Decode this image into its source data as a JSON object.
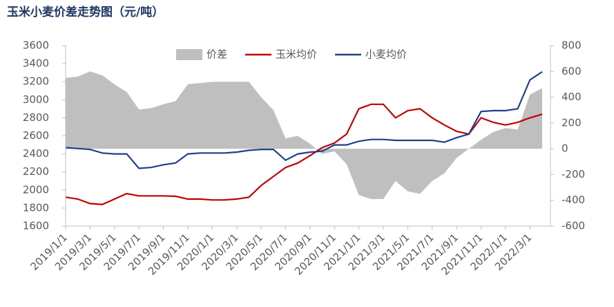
{
  "chart_data": {
    "type": "line",
    "title": "玉米小麦价差走势图（元/吨）",
    "categories": [
      "2019/1/1",
      null,
      "2019/3/1",
      null,
      "2019/5/1",
      null,
      "2019/7/1",
      null,
      "2019/9/1",
      null,
      "2019/11/1",
      null,
      "2020/1/1",
      null,
      "2020/3/1",
      null,
      "2020/5/1",
      null,
      "2020/7/1",
      null,
      "2020/9/1",
      null,
      "2020/11/1",
      null,
      "2021/1/1",
      null,
      "2021/3/1",
      null,
      "2021/5/1",
      null,
      "2021/7/1",
      null,
      "2021/9/1",
      null,
      "2021/11/1",
      null,
      "2022/1/1",
      null,
      "2022/3/1",
      null
    ],
    "series": [
      {
        "name": "价差",
        "kind": "area",
        "axis": "y2",
        "color": "#bfbfbf",
        "values": [
          550,
          560,
          600,
          570,
          500,
          440,
          305,
          315,
          345,
          370,
          500,
          510,
          520,
          520,
          520,
          520,
          400,
          300,
          80,
          100,
          40,
          -40,
          -20,
          -120,
          -360,
          -390,
          -390,
          -250,
          -330,
          -350,
          -250,
          -190,
          -70,
          0,
          70,
          130,
          160,
          150,
          420,
          470
        ]
      },
      {
        "name": "玉米均价",
        "kind": "line",
        "color": "#c00000",
        "values": [
          1920,
          1900,
          1850,
          1840,
          1900,
          1960,
          1935,
          1935,
          1935,
          1930,
          1900,
          1900,
          1890,
          1890,
          1900,
          1920,
          2050,
          2150,
          2250,
          2300,
          2380,
          2470,
          2520,
          2620,
          2900,
          2950,
          2950,
          2800,
          2880,
          2900,
          2800,
          2720,
          2650,
          2620,
          2800,
          2750,
          2720,
          2750,
          2800,
          2840
        ]
      },
      {
        "name": "小麦均价",
        "kind": "line",
        "color": "#1f3f8c",
        "values": [
          2470,
          2460,
          2450,
          2410,
          2400,
          2400,
          2240,
          2250,
          2280,
          2300,
          2400,
          2410,
          2410,
          2410,
          2420,
          2440,
          2450,
          2450,
          2330,
          2400,
          2420,
          2430,
          2500,
          2500,
          2540,
          2560,
          2560,
          2550,
          2550,
          2550,
          2550,
          2530,
          2580,
          2620,
          2870,
          2880,
          2880,
          2900,
          3220,
          3310
        ]
      }
    ],
    "ylim": [
      1600,
      3600
    ],
    "yticks": [
      1600,
      1800,
      2000,
      2200,
      2400,
      2600,
      2800,
      3000,
      3200,
      3400,
      3600
    ],
    "y2lim": [
      -600,
      800
    ],
    "y2ticks": [
      -600,
      -400,
      -200,
      0,
      200,
      400,
      600,
      800
    ]
  }
}
